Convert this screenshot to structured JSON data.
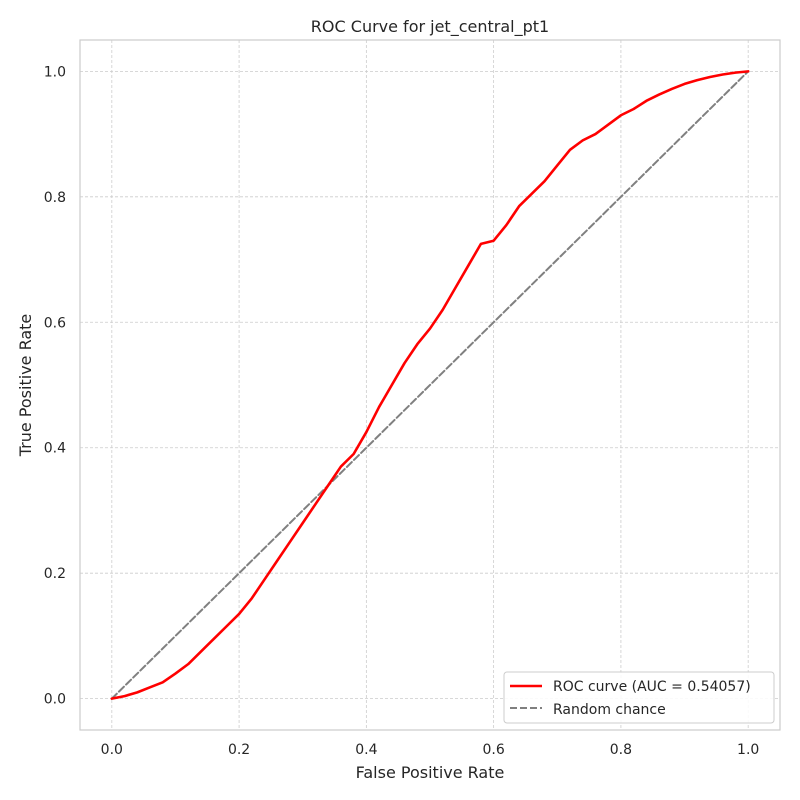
{
  "chart_data": {
    "type": "line",
    "title": "ROC Curve for jet_central_pt1",
    "xlabel": "False Positive Rate",
    "ylabel": "True Positive Rate",
    "xlim": [
      -0.05,
      1.05
    ],
    "ylim": [
      -0.05,
      1.05
    ],
    "xticks": [
      "0.0",
      "0.2",
      "0.4",
      "0.6",
      "0.8",
      "1.0"
    ],
    "yticks": [
      "0.0",
      "0.2",
      "0.4",
      "0.6",
      "0.8",
      "1.0"
    ],
    "grid": true,
    "legend_position": "lower-right",
    "series": [
      {
        "name": "ROC curve (AUC = 0.54057)",
        "color": "#ff0000",
        "style": "solid",
        "x": [
          0.0,
          0.02,
          0.04,
          0.06,
          0.08,
          0.1,
          0.12,
          0.15,
          0.18,
          0.2,
          0.22,
          0.24,
          0.26,
          0.28,
          0.3,
          0.32,
          0.34,
          0.36,
          0.38,
          0.4,
          0.42,
          0.44,
          0.46,
          0.48,
          0.5,
          0.52,
          0.54,
          0.56,
          0.58,
          0.6,
          0.62,
          0.64,
          0.66,
          0.68,
          0.7,
          0.72,
          0.74,
          0.76,
          0.78,
          0.8,
          0.82,
          0.84,
          0.86,
          0.88,
          0.9,
          0.92,
          0.94,
          0.96,
          0.98,
          1.0
        ],
        "y": [
          0.0,
          0.004,
          0.01,
          0.018,
          0.026,
          0.04,
          0.055,
          0.085,
          0.115,
          0.135,
          0.16,
          0.19,
          0.22,
          0.25,
          0.28,
          0.31,
          0.34,
          0.37,
          0.39,
          0.425,
          0.465,
          0.5,
          0.535,
          0.565,
          0.59,
          0.62,
          0.655,
          0.69,
          0.725,
          0.73,
          0.755,
          0.785,
          0.805,
          0.825,
          0.85,
          0.875,
          0.89,
          0.9,
          0.915,
          0.93,
          0.94,
          0.953,
          0.963,
          0.972,
          0.98,
          0.986,
          0.991,
          0.995,
          0.998,
          1.0
        ]
      },
      {
        "name": "Random chance",
        "color": "#808080",
        "style": "dashed",
        "x": [
          0.0,
          1.0
        ],
        "y": [
          0.0,
          1.0
        ]
      }
    ]
  }
}
